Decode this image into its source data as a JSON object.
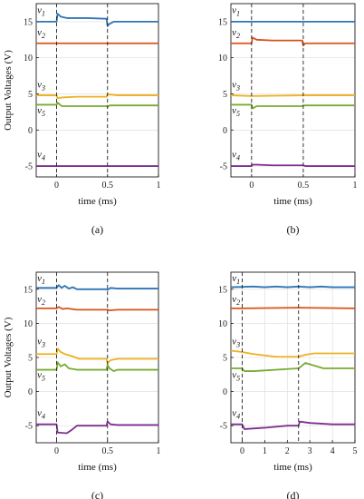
{
  "chart_data": [
    {
      "type": "line",
      "caption": "(a)",
      "xlabel": "time (ms)",
      "ylabel": "Output Voltages (V)",
      "xlim": [
        -0.2,
        1
      ],
      "ylim": [
        -6.5,
        17.5
      ],
      "xticks": [
        0,
        0.5,
        1
      ],
      "yticks": [
        -5,
        0,
        5,
        10,
        15
      ],
      "grid": true,
      "events": [
        0,
        0.5
      ],
      "series": [
        {
          "name": "v1",
          "color": "#2e75b6",
          "x": [
            -0.2,
            0,
            0.01,
            0.04,
            0.1,
            0.2,
            0.3,
            0.49,
            0.5,
            0.51,
            0.56,
            0.6,
            0.7,
            1
          ],
          "y": [
            15,
            15,
            16.1,
            15.7,
            15.5,
            15.5,
            15.5,
            15.4,
            14.4,
            14.6,
            15,
            15,
            15,
            15
          ]
        },
        {
          "name": "v2",
          "color": "#d95319",
          "x": [
            -0.2,
            0,
            0.5,
            1
          ],
          "y": [
            12,
            12,
            12,
            12
          ]
        },
        {
          "name": "v3",
          "color": "#edb120",
          "x": [
            -0.2,
            0,
            0.01,
            0.05,
            0.2,
            0.49,
            0.5,
            0.52,
            0.6,
            1
          ],
          "y": [
            4.8,
            4.8,
            4.4,
            4.5,
            4.6,
            4.6,
            5,
            4.9,
            4.8,
            4.8
          ]
        },
        {
          "name": "v5",
          "color": "#77ac30",
          "x": [
            -0.2,
            0,
            0.01,
            0.05,
            0.2,
            0.49,
            0.5,
            0.52,
            0.6,
            1
          ],
          "y": [
            3.5,
            3.5,
            3.8,
            3.3,
            3.3,
            3.3,
            3.2,
            3.4,
            3.4,
            3.4
          ]
        },
        {
          "name": "v4",
          "color": "#7e2f8e",
          "x": [
            -0.2,
            1
          ],
          "y": [
            -5,
            -5
          ]
        }
      ],
      "labels": [
        {
          "text": "v",
          "sub": "1",
          "y": 16.2,
          "x": -0.19
        },
        {
          "text": "v",
          "sub": "2",
          "y": 13.1,
          "x": -0.19
        },
        {
          "text": "v",
          "sub": "3",
          "y": 5.9,
          "x": -0.19
        },
        {
          "text": "v",
          "sub": "5",
          "y": 2.3,
          "x": -0.19
        },
        {
          "text": "v",
          "sub": "4",
          "y": -3.8,
          "x": -0.19
        }
      ]
    },
    {
      "type": "line",
      "caption": "(b)",
      "xlabel": "time (ms)",
      "ylabel": "",
      "xlim": [
        -0.2,
        1
      ],
      "ylim": [
        -6.5,
        17.5
      ],
      "xticks": [
        0,
        0.5,
        1
      ],
      "yticks": [
        -5,
        0,
        5,
        10,
        15
      ],
      "grid": true,
      "events": [
        0,
        0.5
      ],
      "series": [
        {
          "name": "v1",
          "color": "#2e75b6",
          "x": [
            -0.2,
            1
          ],
          "y": [
            15,
            15
          ]
        },
        {
          "name": "v2",
          "color": "#d95319",
          "x": [
            -0.2,
            0,
            0.01,
            0.05,
            0.2,
            0.49,
            0.5,
            0.52,
            0.6,
            1
          ],
          "y": [
            12,
            12,
            12.8,
            12.5,
            12.4,
            12.4,
            11.7,
            12,
            12,
            12
          ]
        },
        {
          "name": "v3",
          "color": "#edb120",
          "x": [
            -0.2,
            0,
            0.5,
            1
          ],
          "y": [
            4.8,
            4.7,
            4.8,
            4.8
          ]
        },
        {
          "name": "v5",
          "color": "#77ac30",
          "x": [
            -0.2,
            0,
            0.01,
            0.05,
            0.2,
            0.49,
            0.5,
            0.52,
            1
          ],
          "y": [
            3.5,
            3.5,
            3.0,
            3.3,
            3.3,
            3.3,
            3.4,
            3.4,
            3.4
          ]
        },
        {
          "name": "v4",
          "color": "#7e2f8e",
          "x": [
            -0.2,
            0,
            0.01,
            0.05,
            0.2,
            0.5,
            0.52,
            1
          ],
          "y": [
            -5,
            -5,
            -4.8,
            -4.8,
            -4.9,
            -4.9,
            -5,
            -5
          ]
        }
      ],
      "labels": [
        {
          "text": "v",
          "sub": "1",
          "y": 16.2,
          "x": -0.19
        },
        {
          "text": "v",
          "sub": "2",
          "y": 13.1,
          "x": -0.19
        },
        {
          "text": "v",
          "sub": "3",
          "y": 5.9,
          "x": -0.19
        },
        {
          "text": "v",
          "sub": "5",
          "y": 2.3,
          "x": -0.19
        },
        {
          "text": "v",
          "sub": "4",
          "y": -3.8,
          "x": -0.19
        }
      ]
    },
    {
      "type": "line",
      "caption": "(c)",
      "xlabel": "time (ms)",
      "ylabel": "Output Voltages (V)",
      "xlim": [
        -0.2,
        1
      ],
      "ylim": [
        -7.5,
        17.5
      ],
      "xticks": [
        0,
        0.5,
        1
      ],
      "yticks": [
        -5,
        0,
        5,
        10,
        15
      ],
      "grid": true,
      "events": [
        0,
        0.5
      ],
      "series": [
        {
          "name": "v1",
          "color": "#2e75b6",
          "x": [
            -0.2,
            0,
            0.02,
            0.05,
            0.08,
            0.12,
            0.16,
            0.2,
            0.3,
            0.49,
            0.5,
            0.53,
            0.6,
            1
          ],
          "y": [
            15.2,
            15.2,
            15.6,
            15.2,
            15.5,
            15.1,
            15.3,
            15.0,
            15.0,
            15.0,
            14.9,
            15.2,
            15.1,
            15.1
          ]
        },
        {
          "name": "v2",
          "color": "#d95319",
          "x": [
            -0.2,
            0,
            0.02,
            0.06,
            0.1,
            0.2,
            0.3,
            0.5,
            0.52,
            0.6,
            1
          ],
          "y": [
            12.2,
            12.2,
            12.4,
            12.1,
            12.2,
            12.0,
            12.0,
            12.0,
            11.9,
            12.0,
            12.0
          ]
        },
        {
          "name": "v3",
          "color": "#edb120",
          "x": [
            -0.2,
            0,
            0.01,
            0.04,
            0.08,
            0.15,
            0.22,
            0.3,
            0.49,
            0.5,
            0.53,
            0.6,
            1
          ],
          "y": [
            5.5,
            5.5,
            6.3,
            5.8,
            5.5,
            5.2,
            4.8,
            4.8,
            4.8,
            4.2,
            4.6,
            4.8,
            4.8
          ]
        },
        {
          "name": "v5",
          "color": "#77ac30",
          "x": [
            -0.2,
            0,
            0.01,
            0.04,
            0.08,
            0.12,
            0.2,
            0.3,
            0.49,
            0.5,
            0.52,
            0.56,
            0.6,
            1
          ],
          "y": [
            3.2,
            3.2,
            4.3,
            3.7,
            4.0,
            3.4,
            3.2,
            3.2,
            3.2,
            3.9,
            3.4,
            3.0,
            3.2,
            3.2
          ]
        },
        {
          "name": "v4",
          "color": "#7e2f8e",
          "x": [
            -0.2,
            0,
            0.01,
            0.1,
            0.15,
            0.2,
            0.3,
            0.49,
            0.5,
            0.53,
            0.6,
            1
          ],
          "y": [
            -4.8,
            -4.8,
            -6.0,
            -6.1,
            -5.6,
            -5.0,
            -5.0,
            -5.0,
            -4.4,
            -4.8,
            -4.9,
            -4.9
          ]
        }
      ],
      "labels": [
        {
          "text": "v",
          "sub": "1",
          "y": 16.2,
          "x": -0.19
        },
        {
          "text": "v",
          "sub": "2",
          "y": 13.1,
          "x": -0.19
        },
        {
          "text": "v",
          "sub": "3",
          "y": 6.9,
          "x": -0.19
        },
        {
          "text": "v",
          "sub": "5",
          "y": 2.0,
          "x": -0.19
        },
        {
          "text": "v",
          "sub": "4",
          "y": -3.6,
          "x": -0.19
        }
      ]
    },
    {
      "type": "line",
      "caption": "(d)",
      "xlabel": "time (ms)",
      "ylabel": "",
      "xlim": [
        -0.5,
        5
      ],
      "ylim": [
        -7.5,
        17.5
      ],
      "xticks": [
        0,
        1,
        2,
        3,
        4,
        5
      ],
      "yticks": [
        -5,
        0,
        5,
        10,
        15
      ],
      "grid": true,
      "events": [
        0,
        2.5
      ],
      "series": [
        {
          "name": "v1",
          "color": "#2e75b6",
          "x": [
            -0.5,
            0.5,
            1,
            1.5,
            2,
            2.5,
            3,
            3.5,
            4,
            5
          ],
          "y": [
            15.3,
            15.4,
            15.3,
            15.4,
            15.3,
            15.4,
            15.3,
            15.4,
            15.3,
            15.3
          ]
        },
        {
          "name": "v2",
          "color": "#d95319",
          "x": [
            -0.5,
            0,
            2.5,
            5
          ],
          "y": [
            12.2,
            12.2,
            12.3,
            12.2
          ]
        },
        {
          "name": "v3",
          "color": "#edb120",
          "x": [
            -0.5,
            0,
            0.5,
            1,
            1.5,
            2,
            2.5,
            2.8,
            3.2,
            4,
            5
          ],
          "y": [
            6.0,
            5.8,
            5.5,
            5.3,
            5.1,
            5.1,
            5.1,
            5.4,
            5.6,
            5.6,
            5.6
          ]
        },
        {
          "name": "v5",
          "color": "#77ac30",
          "x": [
            -0.5,
            0,
            0.1,
            0.5,
            1,
            2,
            2.5,
            2.8,
            3.2,
            3.6,
            4,
            5
          ],
          "y": [
            3.4,
            3.4,
            3.0,
            3.0,
            3.1,
            3.3,
            3.4,
            4.2,
            3.8,
            3.4,
            3.4,
            3.4
          ]
        },
        {
          "name": "v4",
          "color": "#7e2f8e",
          "x": [
            -0.5,
            0,
            0.1,
            1,
            2,
            2.5,
            2.55,
            3,
            4,
            5
          ],
          "y": [
            -4.8,
            -4.8,
            -5.5,
            -5.3,
            -5.0,
            -5.0,
            -4.4,
            -4.6,
            -4.8,
            -4.8
          ]
        }
      ],
      "labels": [
        {
          "text": "v",
          "sub": "1",
          "y": 16.2,
          "x": -0.45
        },
        {
          "text": "v",
          "sub": "2",
          "y": 13.1,
          "x": -0.45
        },
        {
          "text": "v",
          "sub": "3",
          "y": 6.9,
          "x": -0.45
        },
        {
          "text": "v",
          "sub": "5",
          "y": 2.0,
          "x": -0.45
        },
        {
          "text": "v",
          "sub": "4",
          "y": -3.6,
          "x": -0.45
        }
      ]
    }
  ]
}
